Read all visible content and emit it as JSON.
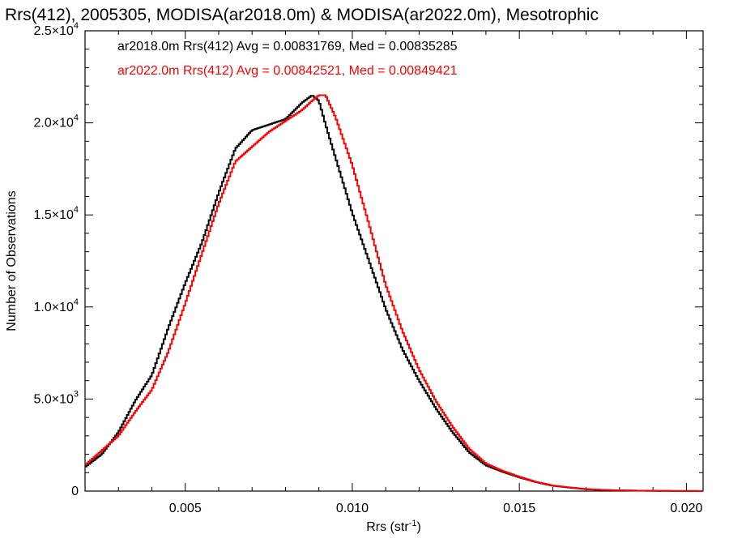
{
  "chart_data": {
    "type": "line",
    "title": "Rrs(412), 2005305, MODISA(ar2018.0m) & MODISA(ar2022.0m), Mesotrophic",
    "xlabel": "Rrs (str",
    "xlabel_sup": "-1",
    "xlabel_end": ")",
    "ylabel": "Number of Observations",
    "xlim": [
      0.002,
      0.0205
    ],
    "ylim": [
      0,
      25000
    ],
    "x_ticks": [
      {
        "value": 0.005,
        "label": "0.005"
      },
      {
        "value": 0.01,
        "label": "0.010"
      },
      {
        "value": 0.015,
        "label": "0.015"
      },
      {
        "value": 0.02,
        "label": "0.020"
      }
    ],
    "y_ticks": [
      {
        "value": 0,
        "mant": "0",
        "exp": ""
      },
      {
        "value": 5000,
        "mant": "5.0×10",
        "exp": "3"
      },
      {
        "value": 10000,
        "mant": "1.0×10",
        "exp": "4"
      },
      {
        "value": 15000,
        "mant": "1.5×10",
        "exp": "4"
      },
      {
        "value": 20000,
        "mant": "2.0×10",
        "exp": "4"
      },
      {
        "value": 25000,
        "mant": "2.5×10",
        "exp": "4"
      }
    ],
    "series": [
      {
        "name": "ar2018.0m Rrs(412) Avg = 0.00831769, Med = 0.00835285",
        "color": "#000000",
        "x": [
          0.002,
          0.0025,
          0.003,
          0.0035,
          0.004,
          0.0045,
          0.005,
          0.0055,
          0.006,
          0.0065,
          0.007,
          0.0075,
          0.008,
          0.0085,
          0.0088,
          0.009,
          0.0092,
          0.0095,
          0.01,
          0.0105,
          0.011,
          0.0115,
          0.012,
          0.0125,
          0.013,
          0.0135,
          0.014,
          0.0145,
          0.015,
          0.0155,
          0.016,
          0.0165,
          0.017,
          0.0175,
          0.018,
          0.0185,
          0.019,
          0.0195,
          0.02,
          0.0205
        ],
        "y": [
          1300,
          2000,
          3200,
          4900,
          6300,
          8900,
          11300,
          13500,
          16200,
          18600,
          19600,
          19900,
          20200,
          21100,
          21500,
          21200,
          19900,
          18100,
          15100,
          12500,
          9900,
          7700,
          6000,
          4500,
          3200,
          2100,
          1400,
          1050,
          750,
          490,
          290,
          190,
          100,
          60,
          40,
          25,
          15,
          8,
          5,
          2
        ]
      },
      {
        "name": "ar2022.0m Rrs(412) Avg = 0.00842521, Med = 0.00849421",
        "color": "#ff0000",
        "x": [
          0.002,
          0.0025,
          0.003,
          0.0035,
          0.004,
          0.0045,
          0.005,
          0.0055,
          0.006,
          0.0065,
          0.007,
          0.0075,
          0.008,
          0.0085,
          0.0088,
          0.009,
          0.0092,
          0.0095,
          0.01,
          0.0105,
          0.011,
          0.0115,
          0.012,
          0.0125,
          0.013,
          0.0135,
          0.014,
          0.0145,
          0.015,
          0.0155,
          0.016,
          0.0165,
          0.017,
          0.0175,
          0.018,
          0.0185,
          0.019,
          0.0195,
          0.02,
          0.0205
        ],
        "y": [
          1400,
          2200,
          3000,
          4300,
          5500,
          7600,
          10200,
          12900,
          15600,
          17900,
          18700,
          19500,
          20100,
          20700,
          21200,
          21500,
          21500,
          20300,
          17700,
          14500,
          11200,
          8700,
          6600,
          4900,
          3500,
          2300,
          1500,
          1100,
          780,
          500,
          300,
          200,
          110,
          65,
          40,
          25,
          15,
          8,
          5,
          2
        ]
      }
    ],
    "grid": false,
    "legend_position": "top-left"
  }
}
